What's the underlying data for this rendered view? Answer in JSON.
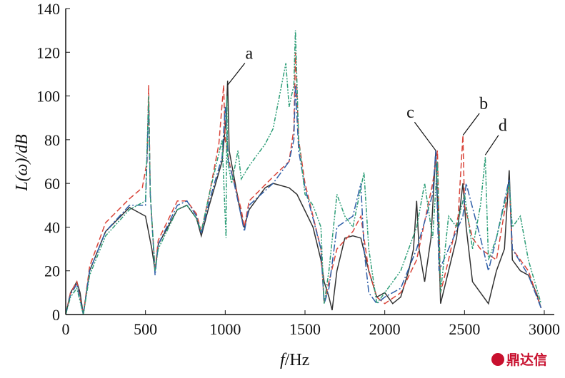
{
  "chart_data": {
    "type": "line",
    "title": "",
    "xlabel_italic": "f",
    "xlabel_rest": "/Hz",
    "ylabel": "L(ω)/dB",
    "xlim": [
      0,
      3000
    ],
    "ylim": [
      0,
      140
    ],
    "xticks": [
      0,
      500,
      1000,
      1500,
      2000,
      2500,
      3000
    ],
    "yticks": [
      0,
      20,
      40,
      60,
      80,
      100,
      120,
      140
    ],
    "grid": false,
    "series": [
      {
        "name": "solid",
        "color": "#333333",
        "dash": "",
        "x": [
          0,
          30,
          70,
          90,
          110,
          150,
          250,
          400,
          500,
          540,
          560,
          580,
          700,
          760,
          820,
          850,
          900,
          980,
          1005,
          1015,
          1025,
          1050,
          1100,
          1120,
          1150,
          1250,
          1300,
          1400,
          1450,
          1550,
          1600,
          1620,
          1650,
          1670,
          1700,
          1750,
          1800,
          1850,
          1900,
          1950,
          2000,
          2050,
          2100,
          2150,
          2180,
          2200,
          2215,
          2250,
          2290,
          2320,
          2340,
          2350,
          2400,
          2450,
          2490,
          2510,
          2550,
          2600,
          2650,
          2700,
          2750,
          2780,
          2800,
          2850,
          2900,
          2950,
          2980
        ],
        "y": [
          0,
          10,
          15,
          10,
          0,
          20,
          38,
          49,
          45,
          30,
          20,
          32,
          48,
          50,
          44,
          36,
          50,
          70,
          90,
          107,
          75,
          65,
          45,
          40,
          48,
          58,
          60,
          58,
          55,
          40,
          25,
          15,
          8,
          2,
          20,
          35,
          36,
          35,
          20,
          8,
          10,
          5,
          8,
          20,
          30,
          52,
          30,
          15,
          35,
          75,
          30,
          5,
          20,
          35,
          60,
          40,
          15,
          10,
          5,
          20,
          30,
          66,
          25,
          20,
          18,
          10,
          3
        ]
      },
      {
        "name": "dashed",
        "color": "#d9453a",
        "dash": "8,4",
        "x": [
          0,
          30,
          70,
          110,
          150,
          250,
          400,
          480,
          510,
          520,
          530,
          560,
          580,
          700,
          760,
          820,
          850,
          900,
          960,
          990,
          1000,
          1030,
          1100,
          1120,
          1150,
          1300,
          1400,
          1430,
          1440,
          1460,
          1500,
          1550,
          1600,
          1620,
          1650,
          1700,
          1800,
          1850,
          1900,
          1950,
          2000,
          2100,
          2200,
          2300,
          2330,
          2350,
          2400,
          2460,
          2490,
          2500,
          2550,
          2600,
          2700,
          2780,
          2800,
          2900,
          2980
        ],
        "y": [
          0,
          10,
          15,
          0,
          22,
          42,
          53,
          58,
          70,
          105,
          55,
          20,
          34,
          52,
          52,
          46,
          38,
          55,
          78,
          105,
          80,
          68,
          48,
          40,
          52,
          63,
          70,
          85,
          120,
          80,
          60,
          45,
          30,
          5,
          15,
          30,
          38,
          45,
          20,
          8,
          5,
          10,
          25,
          60,
          75,
          10,
          25,
          45,
          82,
          50,
          35,
          30,
          25,
          60,
          30,
          20,
          3
        ]
      },
      {
        "name": "dashdot",
        "color": "#2f5fa8",
        "dash": "10,3,2,3",
        "x": [
          0,
          30,
          70,
          110,
          150,
          250,
          400,
          500,
          520,
          530,
          560,
          580,
          700,
          760,
          820,
          850,
          900,
          980,
          1000,
          1020,
          1050,
          1100,
          1120,
          1150,
          1300,
          1400,
          1430,
          1440,
          1460,
          1500,
          1550,
          1600,
          1620,
          1650,
          1700,
          1800,
          1850,
          1870,
          1900,
          1950,
          2000,
          2100,
          2200,
          2300,
          2320,
          2340,
          2400,
          2490,
          2510,
          2600,
          2650,
          2700,
          2780,
          2800,
          2900,
          2980
        ],
        "y": [
          0,
          9,
          14,
          0,
          20,
          38,
          50,
          50,
          95,
          55,
          18,
          32,
          50,
          52,
          45,
          37,
          52,
          72,
          95,
          70,
          62,
          45,
          38,
          50,
          60,
          70,
          80,
          105,
          75,
          58,
          44,
          30,
          5,
          12,
          40,
          45,
          60,
          30,
          10,
          5,
          8,
          12,
          30,
          55,
          75,
          20,
          30,
          45,
          60,
          35,
          20,
          35,
          62,
          30,
          18,
          3
        ]
      },
      {
        "name": "dashdotdot",
        "color": "#2e9e78",
        "dash": "6,2,2,2,2,2",
        "x": [
          0,
          30,
          70,
          110,
          150,
          250,
          400,
          500,
          520,
          530,
          560,
          580,
          700,
          760,
          820,
          850,
          900,
          980,
          1005,
          1010,
          1015,
          1040,
          1080,
          1100,
          1150,
          1250,
          1300,
          1380,
          1400,
          1430,
          1440,
          1460,
          1500,
          1550,
          1600,
          1620,
          1650,
          1700,
          1750,
          1800,
          1870,
          1900,
          1950,
          2000,
          2100,
          2200,
          2250,
          2300,
          2330,
          2350,
          2400,
          2450,
          2500,
          2550,
          2600,
          2630,
          2650,
          2700,
          2780,
          2800,
          2850,
          2900,
          2980
        ],
        "y": [
          0,
          8,
          12,
          0,
          18,
          36,
          48,
          52,
          100,
          55,
          20,
          30,
          48,
          50,
          44,
          38,
          55,
          80,
          35,
          100,
          70,
          60,
          75,
          62,
          68,
          78,
          85,
          115,
          95,
          105,
          130,
          80,
          55,
          50,
          40,
          5,
          20,
          55,
          45,
          40,
          65,
          30,
          5,
          10,
          20,
          40,
          60,
          35,
          70,
          10,
          45,
          40,
          55,
          30,
          50,
          72,
          25,
          35,
          60,
          40,
          45,
          25,
          5
        ]
      }
    ],
    "annotations": [
      {
        "text": "a",
        "x": 1015,
        "y": 105,
        "tx": 1150,
        "ty": 117
      },
      {
        "text": "b",
        "x": 2490,
        "y": 82,
        "tx": 2620,
        "ty": 94
      },
      {
        "text": "c",
        "x": 2320,
        "y": 75,
        "tx": 2160,
        "ty": 90
      },
      {
        "text": "d",
        "x": 2630,
        "y": 73,
        "tx": 2740,
        "ty": 84
      }
    ]
  },
  "watermark": "鼎达信"
}
